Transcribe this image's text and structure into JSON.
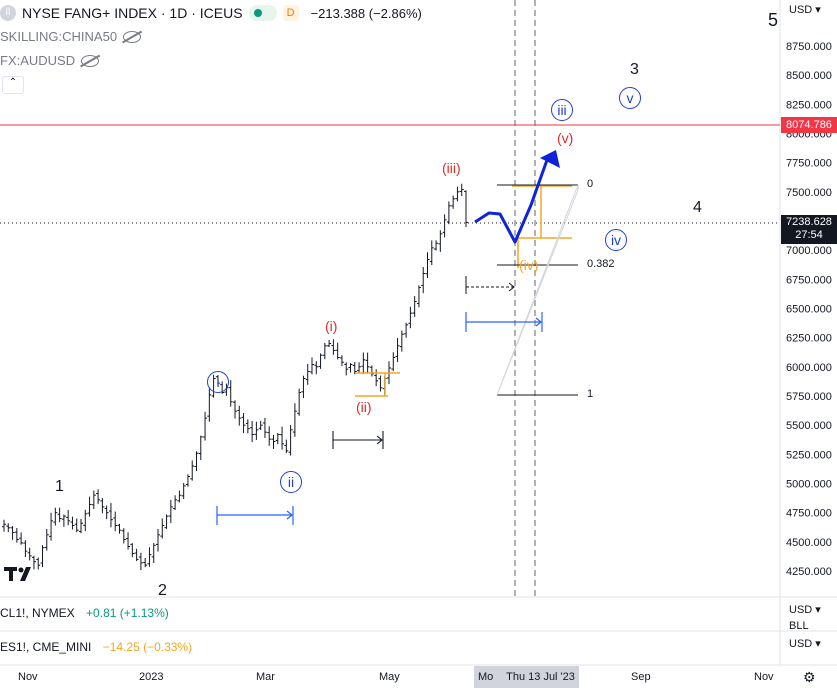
{
  "header": {
    "symbol": "NYSE FANG+ INDEX · 1D · ICEUS",
    "badge_d": "D",
    "change": "−213.388 (−2.86%)",
    "overlays": [
      "SKILLING:CHINA50",
      "FX:AUDUSD"
    ],
    "currency": "USD"
  },
  "price_labels": {
    "red_line": "8074.786",
    "last_price": "7238.628",
    "countdown": "27:54"
  },
  "lower_panes": [
    {
      "label": "CL1!, NYMEX",
      "change": "+0.81 (+1.13%)",
      "color": "#089981",
      "currency": "USD"
    },
    {
      "label": "ES1!, CME_MINI",
      "change": "−14.25 (−0.33%)",
      "color": "#f5a623",
      "currency": "USD"
    }
  ],
  "date_axis": {
    "labels": [
      "Nov",
      "2023",
      "Mar",
      "May",
      "Mo",
      "Sep",
      "Nov"
    ],
    "crosshair_date": "Thu 13 Jul '23"
  },
  "waves": {
    "primary": [
      "1",
      "2",
      "3",
      "4",
      "5"
    ],
    "circled_blue": [
      "i",
      "ii",
      "iii",
      "iv",
      "v"
    ],
    "red_minor": [
      "(i)",
      "(ii)",
      "(iii)",
      "(iv)",
      "(v)"
    ]
  },
  "fib_labels": [
    "0",
    "0.382",
    "1"
  ],
  "colors": {
    "candles": "#131722",
    "red_line": "#f23645",
    "projection": "#0d24d9",
    "orange_box": "#f5a623",
    "red_wave": "#e02b2b",
    "blue_wave": "#1f3fd6"
  },
  "chart_data": {
    "type": "candlestick",
    "y_axis_ticks": [
      "8750.000",
      "8500.000",
      "8250.000",
      "8000.000",
      "7750.000",
      "7500.000",
      "7250.000",
      "7000.000",
      "6750.000",
      "6500.000",
      "6250.000",
      "6000.000",
      "5750.000",
      "5500.000",
      "5250.000",
      "5000.000",
      "4750.000",
      "4500.000",
      "4250.000"
    ],
    "ylim": [
      4100,
      8950
    ],
    "x_labels": [
      "Nov",
      "2023",
      "Mar",
      "May",
      "Sep",
      "Nov"
    ],
    "closes": [
      4650,
      4620,
      4580,
      4520,
      4490,
      4420,
      4380,
      4330,
      4300,
      4450,
      4560,
      4680,
      4750,
      4700,
      4720,
      4680,
      4640,
      4600,
      4660,
      4740,
      4820,
      4900,
      4860,
      4800,
      4750,
      4690,
      4640,
      4600,
      4520,
      4460,
      4400,
      4350,
      4320,
      4300,
      4390,
      4470,
      4560,
      4640,
      4720,
      4800,
      4860,
      4900,
      4980,
      5060,
      5150,
      5260,
      5400,
      5560,
      5760,
      5900,
      5860,
      5780,
      5820,
      5700,
      5620,
      5560,
      5500,
      5470,
      5420,
      5460,
      5500,
      5440,
      5380,
      5360,
      5420,
      5340,
      5280,
      5460,
      5620,
      5780,
      5900,
      5960,
      6020,
      6000,
      6100,
      6180,
      6200,
      6140,
      6080,
      6040,
      5980,
      6020,
      5960,
      6000,
      6060,
      6000,
      5940,
      5880,
      5820,
      5900,
      5990,
      6080,
      6180,
      6280,
      6360,
      6460,
      6560,
      6680,
      6800,
      6920,
      7020,
      7060,
      7140,
      7260,
      7380,
      7440,
      7500,
      7520,
      7238
    ],
    "last_close": 7238.628,
    "resistance_line": 8074.786
  }
}
